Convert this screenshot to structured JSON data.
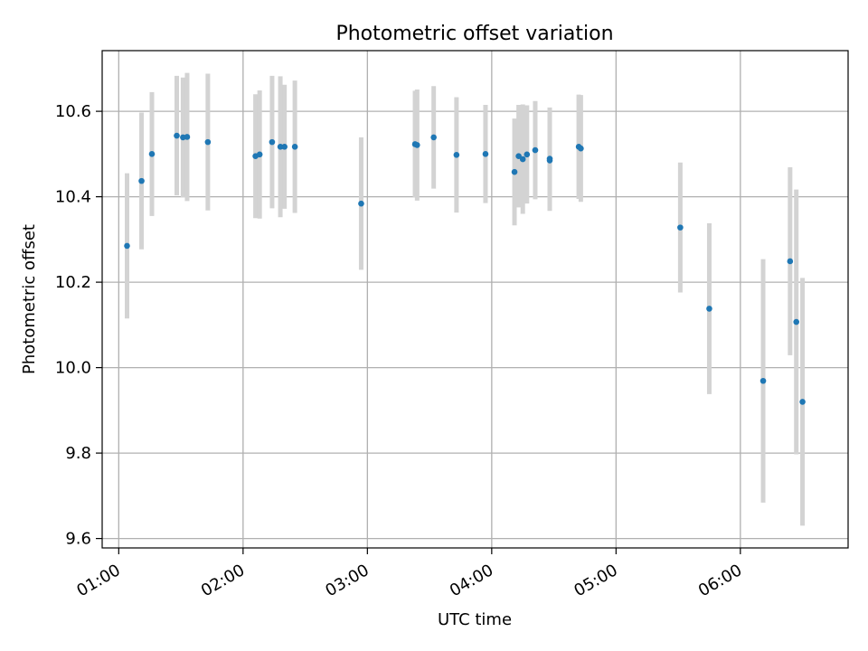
{
  "chart_data": {
    "type": "scatter",
    "title": "Photometric offset variation",
    "xlabel": "UTC time",
    "ylabel": "Photometric offset",
    "x_ticks": [
      "01:00",
      "02:00",
      "03:00",
      "04:00",
      "05:00",
      "06:00"
    ],
    "y_ticks": [
      "9.6",
      "9.8",
      "10.0",
      "10.2",
      "10.4",
      "10.6"
    ],
    "xlim": [
      "00:52",
      "06:52"
    ],
    "ylim": [
      9.578,
      10.742
    ],
    "grid": true,
    "colors": {
      "point": "#1f77b4",
      "errorbar": "#d3d3d3",
      "grid": "#b0b0b0",
      "axes": "#000000"
    },
    "series": [
      {
        "points": [
          {
            "x": "01:04",
            "y": 10.285,
            "err": 0.17
          },
          {
            "x": "01:11",
            "y": 10.437,
            "err": 0.16
          },
          {
            "x": "01:16",
            "y": 10.5,
            "err": 0.145
          },
          {
            "x": "01:28",
            "y": 10.543,
            "err": 0.14
          },
          {
            "x": "01:31",
            "y": 10.539,
            "err": 0.14
          },
          {
            "x": "01:33",
            "y": 10.54,
            "err": 0.15
          },
          {
            "x": "01:43",
            "y": 10.528,
            "err": 0.16
          },
          {
            "x": "02:06",
            "y": 10.495,
            "err": 0.145
          },
          {
            "x": "02:08",
            "y": 10.499,
            "err": 0.15
          },
          {
            "x": "02:14",
            "y": 10.528,
            "err": 0.155
          },
          {
            "x": "02:18",
            "y": 10.517,
            "err": 0.165
          },
          {
            "x": "02:20",
            "y": 10.517,
            "err": 0.145
          },
          {
            "x": "02:25",
            "y": 10.517,
            "err": 0.155
          },
          {
            "x": "02:57",
            "y": 10.384,
            "err": 0.155
          },
          {
            "x": "03:23",
            "y": 10.523,
            "err": 0.125
          },
          {
            "x": "03:24",
            "y": 10.521,
            "err": 0.13
          },
          {
            "x": "03:32",
            "y": 10.539,
            "err": 0.12
          },
          {
            "x": "03:43",
            "y": 10.498,
            "err": 0.135
          },
          {
            "x": "03:57",
            "y": 10.5,
            "err": 0.115
          },
          {
            "x": "04:11",
            "y": 10.458,
            "err": 0.125
          },
          {
            "x": "04:13",
            "y": 10.495,
            "err": 0.12
          },
          {
            "x": "04:15",
            "y": 10.488,
            "err": 0.128
          },
          {
            "x": "04:17",
            "y": 10.499,
            "err": 0.115
          },
          {
            "x": "04:21",
            "y": 10.509,
            "err": 0.115
          },
          {
            "x": "04:28",
            "y": 10.489,
            "err": 0.12
          },
          {
            "x": "04:28",
            "y": 10.485,
            "err": 0.118
          },
          {
            "x": "04:42",
            "y": 10.517,
            "err": 0.122
          },
          {
            "x": "04:43",
            "y": 10.513,
            "err": 0.125
          },
          {
            "x": "05:31",
            "y": 10.328,
            "err": 0.152
          },
          {
            "x": "05:45",
            "y": 10.138,
            "err": 0.2
          },
          {
            "x": "06:11",
            "y": 9.969,
            "err": 0.285
          },
          {
            "x": "06:24",
            "y": 10.249,
            "err": 0.22
          },
          {
            "x": "06:27",
            "y": 10.107,
            "err": 0.31
          },
          {
            "x": "06:30",
            "y": 9.92,
            "err": 0.29
          }
        ]
      }
    ]
  }
}
